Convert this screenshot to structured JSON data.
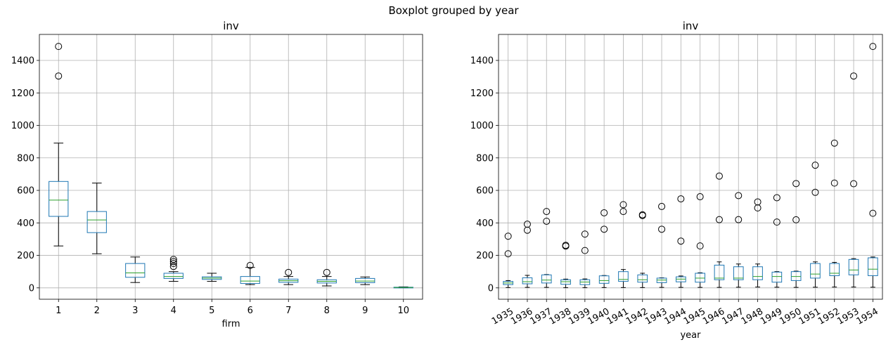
{
  "suptitle": "Boxplot grouped by year",
  "chart_data": [
    {
      "type": "boxplot",
      "title": "inv",
      "xlabel": "firm",
      "ylabel": "",
      "ylim": [
        -70,
        1560
      ],
      "yticks": [
        0,
        200,
        400,
        600,
        800,
        1000,
        1200,
        1400
      ],
      "grid": true,
      "categories": [
        "1",
        "2",
        "3",
        "4",
        "5",
        "6",
        "7",
        "8",
        "9",
        "10"
      ],
      "boxes": [
        {
          "whislo": 258,
          "q1": 440,
          "med": 540,
          "q3": 655,
          "whishi": 891,
          "fliers": [
            1304,
            1486
          ]
        },
        {
          "whislo": 210,
          "q1": 340,
          "med": 418,
          "q3": 470,
          "whishi": 645,
          "fliers": []
        },
        {
          "whislo": 33,
          "q1": 65,
          "med": 92,
          "q3": 150,
          "whishi": 190,
          "fliers": []
        },
        {
          "whislo": 40,
          "q1": 58,
          "med": 70,
          "q3": 90,
          "whishi": 100,
          "fliers": [
            132,
            150,
            162,
            175
          ]
        },
        {
          "whislo": 40,
          "q1": 52,
          "med": 60,
          "q3": 68,
          "whishi": 90,
          "fliers": []
        },
        {
          "whislo": 20,
          "q1": 27,
          "med": 42,
          "q3": 70,
          "whishi": 126,
          "fliers": [
            138
          ]
        },
        {
          "whislo": 20,
          "q1": 34,
          "med": 44,
          "q3": 54,
          "whishi": 70,
          "fliers": [
            95
          ]
        },
        {
          "whislo": 12,
          "q1": 30,
          "med": 40,
          "q3": 50,
          "whishi": 70,
          "fliers": [
            95
          ]
        },
        {
          "whislo": 20,
          "q1": 32,
          "med": 42,
          "q3": 58,
          "whishi": 67,
          "fliers": []
        },
        {
          "whislo": 0.5,
          "q1": 1.5,
          "med": 2.5,
          "q3": 4,
          "whishi": 6,
          "fliers": []
        }
      ]
    },
    {
      "type": "boxplot",
      "title": "inv",
      "xlabel": "year",
      "ylabel": "",
      "ylim": [
        -70,
        1560
      ],
      "yticks": [
        0,
        200,
        400,
        600,
        800,
        1000,
        1200,
        1400
      ],
      "grid": true,
      "xtick_rotation": 30,
      "categories": [
        "1935",
        "1936",
        "1937",
        "1938",
        "1939",
        "1940",
        "1941",
        "1942",
        "1943",
        "1944",
        "1945",
        "1946",
        "1947",
        "1948",
        "1949",
        "1950",
        "1951",
        "1952",
        "1953",
        "1954"
      ],
      "boxes": [
        {
          "whislo": 2,
          "q1": 20,
          "med": 30,
          "q3": 40,
          "whishi": 45,
          "fliers": [
            210,
            318
          ]
        },
        {
          "whislo": 3,
          "q1": 25,
          "med": 38,
          "q3": 62,
          "whishi": 77,
          "fliers": [
            355,
            392
          ]
        },
        {
          "whislo": 3,
          "q1": 30,
          "med": 48,
          "q3": 80,
          "whishi": 82,
          "fliers": [
            410,
            470
          ]
        },
        {
          "whislo": 1,
          "q1": 22,
          "med": 38,
          "q3": 50,
          "whishi": 54,
          "fliers": [
            257,
            262
          ]
        },
        {
          "whislo": 1,
          "q1": 20,
          "med": 36,
          "q3": 50,
          "whishi": 55,
          "fliers": [
            230,
            331
          ]
        },
        {
          "whislo": 2,
          "q1": 28,
          "med": 45,
          "q3": 74,
          "whishi": 76,
          "fliers": [
            361,
            462
          ]
        },
        {
          "whislo": 2,
          "q1": 40,
          "med": 52,
          "q3": 100,
          "whishi": 113,
          "fliers": [
            470,
            512
          ]
        },
        {
          "whislo": 2,
          "q1": 35,
          "med": 50,
          "q3": 80,
          "whishi": 90,
          "fliers": [
            445,
            450
          ]
        },
        {
          "whislo": 3,
          "q1": 32,
          "med": 48,
          "q3": 60,
          "whishi": 62,
          "fliers": [
            361,
            501
          ]
        },
        {
          "whislo": 3,
          "q1": 37,
          "med": 54,
          "q3": 68,
          "whishi": 73,
          "fliers": [
            288,
            548
          ]
        },
        {
          "whislo": 3,
          "q1": 35,
          "med": 60,
          "q3": 90,
          "whishi": 93,
          "fliers": [
            258,
            561
          ]
        },
        {
          "whislo": 3,
          "q1": 50,
          "med": 60,
          "q3": 140,
          "whishi": 160,
          "fliers": [
            420,
            688
          ]
        },
        {
          "whislo": 4,
          "q1": 50,
          "med": 60,
          "q3": 130,
          "whishi": 147,
          "fliers": [
            420,
            568
          ]
        },
        {
          "whislo": 5,
          "q1": 50,
          "med": 70,
          "q3": 130,
          "whishi": 147,
          "fliers": [
            492,
            529
          ]
        },
        {
          "whislo": 4,
          "q1": 35,
          "med": 70,
          "q3": 97,
          "whishi": 100,
          "fliers": [
            405,
            555
          ]
        },
        {
          "whislo": 3,
          "q1": 45,
          "med": 70,
          "q3": 100,
          "whishi": 103,
          "fliers": [
            419,
            642
          ]
        },
        {
          "whislo": 4,
          "q1": 60,
          "med": 85,
          "q3": 150,
          "whishi": 160,
          "fliers": [
            588,
            755
          ]
        },
        {
          "whislo": 5,
          "q1": 75,
          "med": 90,
          "q3": 150,
          "whishi": 157,
          "fliers": [
            645,
            891
          ]
        },
        {
          "whislo": 5,
          "q1": 80,
          "med": 110,
          "q3": 175,
          "whishi": 180,
          "fliers": [
            641,
            1304
          ]
        },
        {
          "whislo": 4,
          "q1": 75,
          "med": 115,
          "q3": 185,
          "whishi": 190,
          "fliers": [
            459,
            1486
          ]
        }
      ]
    }
  ]
}
